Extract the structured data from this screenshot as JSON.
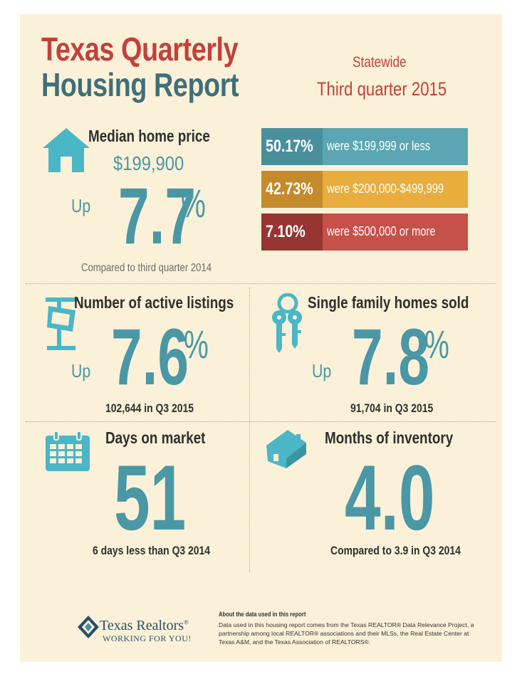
{
  "header": {
    "title_line1": "Texas Quarterly",
    "title_line2": "Housing Report",
    "region": "Statewide",
    "period": "Third quarter 2015"
  },
  "median": {
    "label": "Median home price",
    "price": "$199,900",
    "direction": "Up",
    "change_value": "7.7",
    "change_unit": "%",
    "caption": "Compared to third quarter 2014",
    "icon": "house-icon"
  },
  "price_bands": [
    {
      "percent": "50.17%",
      "label": "were $199,999 or less",
      "num_color": "#4a8f9c",
      "txt_color": "#5ba6b2"
    },
    {
      "percent": "42.73%",
      "label": "were $200,000-$499,999",
      "num_color": "#c48a2b",
      "txt_color": "#e8ad3c"
    },
    {
      "percent": "7.10%",
      "label": "were $500,000 or more",
      "num_color": "#963532",
      "txt_color": "#c6504a"
    }
  ],
  "listings": {
    "label": "Number of active listings",
    "direction": "Up",
    "change_value": "7.6",
    "change_unit": "%",
    "caption": "102,644 in Q3 2015",
    "icon": "for-sale-sign-icon"
  },
  "sold": {
    "label": "Single family homes sold",
    "direction": "Up",
    "change_value": "7.8",
    "change_unit": "%",
    "caption": "91,704 in Q3 2015",
    "icon": "keys-icon"
  },
  "days": {
    "label": "Days on market",
    "value": "51",
    "caption": "6 days less than Q3 2014",
    "icon": "calendar-icon"
  },
  "inventory": {
    "label": "Months of inventory",
    "value": "4.0",
    "caption": "Compared to 3.9 in Q3 2014",
    "icon": "house-icon"
  },
  "footer": {
    "brand_name": "Texas Realtors",
    "brand_reg": "®",
    "brand_tagline": "WORKING FOR YOU!",
    "about_title": "About the data used in this report",
    "about_body": "Data used in this housing report comes from the Texas REALTOR® Data Relevance Project, a partnership among local REALTOR® associations and their MLSs, the Real Estate Center at Texas A&M, and the Texas Association of REALTORS®."
  }
}
